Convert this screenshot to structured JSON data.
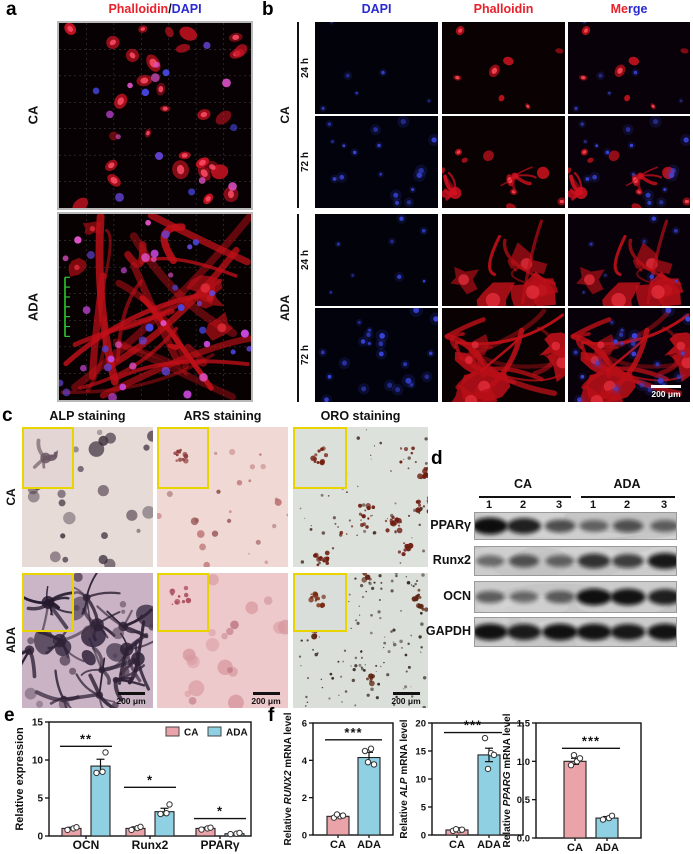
{
  "figure": {
    "panel_a": {
      "label": "a",
      "title_parts": [
        {
          "text": "Phalloidin",
          "color": "#e8212b"
        },
        {
          "text": "/",
          "color": "#111111"
        },
        {
          "text": "DAPI",
          "color": "#2a2ad0"
        }
      ],
      "rows": [
        {
          "label": "CA"
        },
        {
          "label": "ADA"
        }
      ]
    },
    "panel_b": {
      "label": "b",
      "columns": [
        {
          "parts": [
            {
              "text": "DAPI",
              "color": "#2a2ad0"
            }
          ]
        },
        {
          "parts": [
            {
              "text": "Phalloidin",
              "color": "#e8212b"
            }
          ]
        },
        {
          "parts": [
            {
              "text": "Me",
              "color": "#e8212b"
            },
            {
              "text": "rge",
              "color": "#2a2ad0"
            }
          ]
        }
      ],
      "groups": [
        {
          "label": "CA",
          "times": [
            "24 h",
            "72 h"
          ]
        },
        {
          "label": "ADA",
          "times": [
            "24 h",
            "72 h"
          ]
        }
      ],
      "scale_bar": "200 μm"
    },
    "panel_c": {
      "label": "c",
      "columns": [
        "ALP staining",
        "ARS staining",
        "ORO staining"
      ],
      "rows": [
        {
          "label": "CA"
        },
        {
          "label": "ADA"
        }
      ],
      "scale_bar": "200 μm"
    },
    "panel_d": {
      "label": "d",
      "groups": [
        {
          "label": "CA",
          "lanes": [
            "1",
            "2",
            "3"
          ]
        },
        {
          "label": "ADA",
          "lanes": [
            "1",
            "2",
            "3"
          ]
        }
      ],
      "proteins": [
        "PPARγ",
        "Runx2",
        "OCN",
        "GAPDH"
      ],
      "band_intensities": [
        [
          0.97,
          0.85,
          0.55,
          0.4,
          0.52,
          0.42
        ],
        [
          0.38,
          0.52,
          0.42,
          0.74,
          0.66,
          0.9
        ],
        [
          0.45,
          0.38,
          0.48,
          0.96,
          0.94,
          0.85
        ],
        [
          0.95,
          0.88,
          0.95,
          0.94,
          0.9,
          0.94
        ]
      ]
    },
    "panel_e": {
      "label": "e"
    },
    "panel_f": {
      "label": "f"
    }
  },
  "colors": {
    "ca_bar": "#eba3aa",
    "ada_bar": "#8fd0e2",
    "red": "#e8212b",
    "blue": "#2a2ad0"
  },
  "chart_data": [
    {
      "id": "chart-e",
      "type": "bar",
      "grouped": true,
      "ylabel": "Relative expression",
      "ylim": [
        0,
        15
      ],
      "yticks": [
        0,
        5,
        10,
        15
      ],
      "ytick_labels": [
        "0",
        "5",
        "10",
        "15"
      ],
      "categories": [
        "OCN",
        "Runx2",
        "PPARγ"
      ],
      "series": [
        {
          "name": "CA",
          "color": "#eba3aa",
          "values": [
            1.0,
            1.0,
            1.0
          ],
          "errors": [
            0.15,
            0.2,
            0.12
          ],
          "points": [
            [
              0.8,
              1.0,
              1.15
            ],
            [
              0.8,
              1.05,
              1.2
            ],
            [
              0.85,
              1.0,
              1.1
            ]
          ]
        },
        {
          "name": "ADA",
          "color": "#8fd0e2",
          "values": [
            9.2,
            3.2,
            0.3
          ],
          "errors": [
            0.9,
            0.45,
            0.08
          ],
          "points": [
            [
              8.3,
              8.45,
              11.0
            ],
            [
              2.9,
              3.0,
              4.15
            ],
            [
              0.25,
              0.3,
              0.4
            ]
          ]
        }
      ],
      "significance": [
        {
          "label": "**",
          "y": 11.8
        },
        {
          "label": "*",
          "y": 6.4
        },
        {
          "label": "*",
          "y": 2.3
        }
      ],
      "legend": {
        "position": "top-right",
        "items": [
          "CA",
          "ADA"
        ]
      }
    },
    {
      "id": "chart-f1",
      "type": "bar",
      "ylabel_parts": [
        {
          "text": "Relative ",
          "italic": false
        },
        {
          "text": "RUNX2",
          "italic": true
        },
        {
          "text": " mRNA level",
          "italic": false
        }
      ],
      "ylim": [
        0,
        6
      ],
      "yticks": [
        0,
        2,
        4,
        6
      ],
      "ytick_labels": [
        "0",
        "2",
        "4",
        "6"
      ],
      "categories": [
        "CA",
        "ADA"
      ],
      "colors": [
        "#eba3aa",
        "#8fd0e2"
      ],
      "values": [
        1.0,
        4.15
      ],
      "errors": [
        0.06,
        0.28
      ],
      "points": [
        [
          0.93,
          1.0,
          1.04,
          1.1
        ],
        [
          4.5,
          4.62,
          3.78,
          3.9
        ]
      ],
      "significance": {
        "label": "***",
        "y": 5.1
      }
    },
    {
      "id": "chart-f2",
      "type": "bar",
      "ylabel_parts": [
        {
          "text": "Relative ",
          "italic": false
        },
        {
          "text": "ALP",
          "italic": true
        },
        {
          "text": " mRNA level",
          "italic": false
        }
      ],
      "ylim": [
        0,
        20
      ],
      "yticks": [
        0,
        5,
        10,
        15,
        20
      ],
      "ytick_labels": [
        "0",
        "5",
        "10",
        "15",
        "20"
      ],
      "categories": [
        "CA",
        "ADA"
      ],
      "colors": [
        "#eba3aa",
        "#8fd0e2"
      ],
      "values": [
        0.9,
        14.3
      ],
      "errors": [
        0.1,
        1.2
      ],
      "points": [
        [
          0.75,
          0.85,
          0.95,
          1.03
        ],
        [
          17.3,
          14.6,
          14.3,
          11.8
        ]
      ],
      "significance": {
        "label": "***",
        "y": 18.3
      }
    },
    {
      "id": "chart-f3",
      "type": "bar",
      "ylabel_parts": [
        {
          "text": "Relative ",
          "italic": false
        },
        {
          "text": "PPARG",
          "italic": true
        },
        {
          "text": " mRNA level",
          "italic": false
        }
      ],
      "ylim": [
        0,
        1.5
      ],
      "yticks": [
        0,
        0.5,
        1.0,
        1.5
      ],
      "ytick_labels": [
        "0.0",
        "0.5",
        "1.0",
        "1.5"
      ],
      "categories": [
        "CA",
        "ADA"
      ],
      "colors": [
        "#eba3aa",
        "#8fd0e2"
      ],
      "values": [
        1.0,
        0.26
      ],
      "errors": [
        0.04,
        0.02
      ],
      "points": [
        [
          0.95,
          1.0,
          1.04,
          1.08
        ],
        [
          0.24,
          0.26,
          0.29
        ]
      ],
      "significance": {
        "label": "***",
        "y": 1.17
      }
    }
  ]
}
